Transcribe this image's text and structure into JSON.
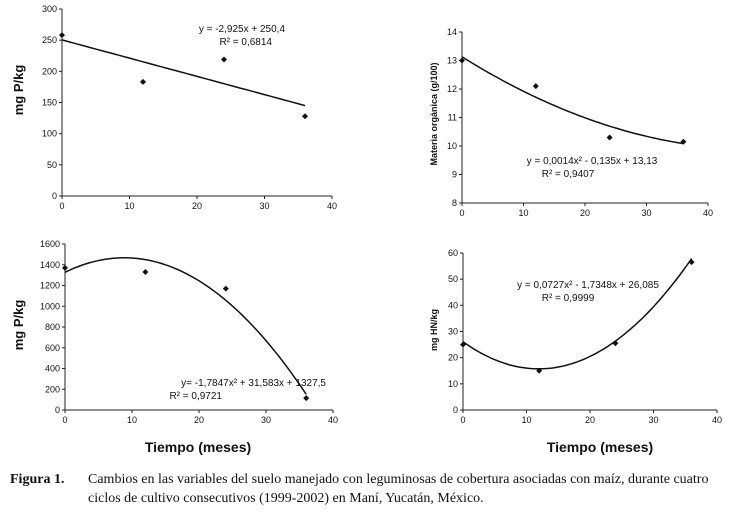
{
  "chart_data": [
    {
      "type": "scatter",
      "ylabel": "mg P/kg",
      "xlabel": "",
      "xlim": [
        0,
        40
      ],
      "ylim": [
        0,
        300
      ],
      "xticks": [
        "0",
        "10",
        "20",
        "30",
        "40"
      ],
      "yticks": [
        "0",
        "50",
        "100",
        "150",
        "200",
        "250",
        "300"
      ],
      "points": {
        "x": [
          0,
          12,
          24,
          36
        ],
        "y": [
          258,
          183,
          219,
          128
        ]
      },
      "trend": {
        "kind": "linear",
        "coef": [
          250.4,
          -2.925
        ],
        "x_range": [
          0,
          36
        ]
      },
      "equation": "y = -2,925x + 250,4",
      "r2": "R² = 0,6814"
    },
    {
      "type": "scatter",
      "ylabel": "Materia orgánica (g/100)",
      "xlabel": "",
      "xlim": [
        0,
        40
      ],
      "ylim": [
        8,
        14
      ],
      "xticks": [
        "0",
        "10",
        "20",
        "30",
        "40"
      ],
      "yticks": [
        "8",
        "9",
        "10",
        "11",
        "12",
        "13",
        "14"
      ],
      "points": {
        "x": [
          0,
          12,
          24,
          36
        ],
        "y": [
          13.0,
          12.1,
          10.3,
          10.15
        ]
      },
      "trend": {
        "kind": "poly2",
        "coef": [
          13.13,
          -0.135,
          0.0014
        ],
        "x_range": [
          0,
          36
        ]
      },
      "equation": "y = 0,0014x² - 0,135x + 13,13",
      "r2": "R² = 0,9407"
    },
    {
      "type": "scatter",
      "ylabel": "mg P/kg",
      "xlabel": "Tiempo (meses)",
      "xlim": [
        0,
        40
      ],
      "ylim": [
        0,
        1600
      ],
      "xticks": [
        "0",
        "10",
        "20",
        "30",
        "40"
      ],
      "yticks": [
        "0",
        "200",
        "400",
        "600",
        "800",
        "1000",
        "1200",
        "1400",
        "1600"
      ],
      "points": {
        "x": [
          0,
          12,
          24,
          36
        ],
        "y": [
          1370,
          1330,
          1170,
          115
        ]
      },
      "trend": {
        "kind": "poly2",
        "coef": [
          1327.5,
          31.583,
          -1.7847
        ],
        "x_range": [
          0,
          36
        ]
      },
      "equation": "y= -1,7847x² + 31,583x + 1327,5",
      "r2": "R² = 0,9721"
    },
    {
      "type": "scatter",
      "ylabel": "mg HN/kg",
      "xlabel": "Tiempo (meses)",
      "xlim": [
        0,
        40
      ],
      "ylim": [
        0,
        60
      ],
      "xticks": [
        "0",
        "10",
        "20",
        "30",
        "40"
      ],
      "yticks": [
        "0",
        "10",
        "20",
        "30",
        "40",
        "50",
        "60"
      ],
      "points": {
        "x": [
          0,
          12,
          24,
          36
        ],
        "y": [
          25,
          15,
          25.5,
          56.5
        ]
      },
      "trend": {
        "kind": "poly2",
        "coef": [
          26.085,
          -1.7348,
          0.0727
        ],
        "x_range": [
          0,
          36
        ]
      },
      "equation": "y = 0,0727x² - 1,7348x + 26,085",
      "r2": "R² = 0,9999"
    }
  ],
  "caption": {
    "label": "Figura 1.",
    "text": "Cambios en las variables del suelo manejado con leguminosas de cobertura asociadas con maíz, durante cuatro ciclos de cultivo consecutivos (1999-2002) en Maní, Yucatán, México."
  }
}
